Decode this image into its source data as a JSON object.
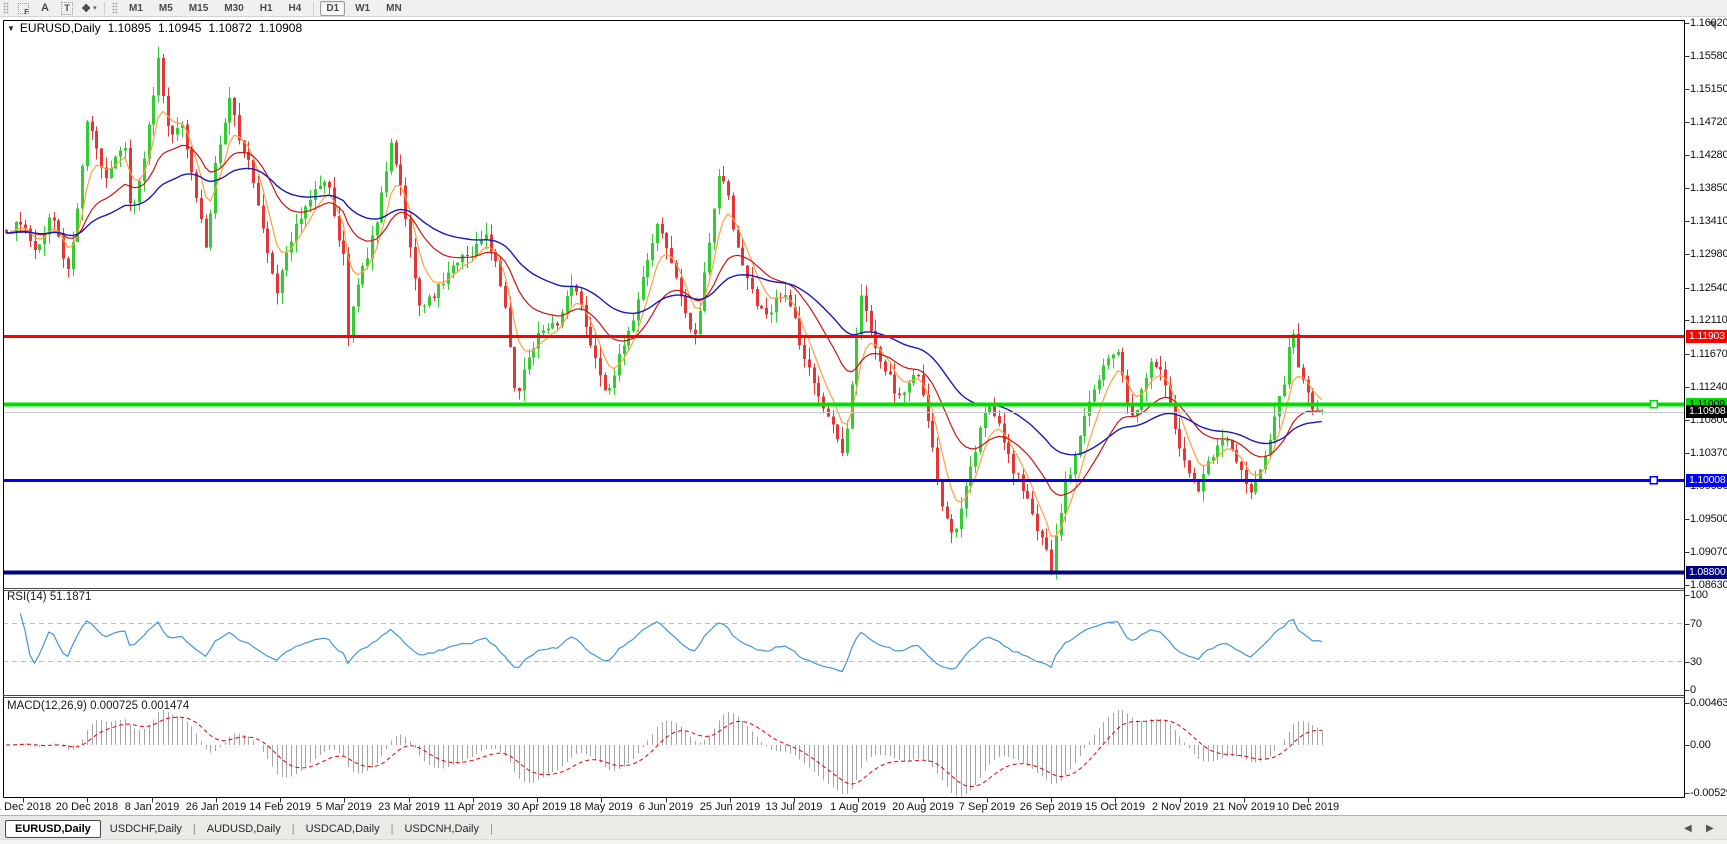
{
  "toolbar": {
    "tools": [
      {
        "name": "fractals-grid-icon",
        "label": "F"
      },
      {
        "name": "text-annotation-icon",
        "label": "A"
      },
      {
        "name": "text-label-icon",
        "label": "T"
      },
      {
        "name": "line-style-icon",
        "label": "❖",
        "caret": "▾"
      }
    ],
    "timeframes": [
      "M1",
      "M5",
      "M15",
      "M30",
      "H1",
      "H4",
      "D1",
      "W1",
      "MN"
    ],
    "active_timeframe": "D1"
  },
  "chart": {
    "title": {
      "dropdown": "▼",
      "symbol": "EURUSD,Daily",
      "open": "1.10895",
      "high": "1.10945",
      "low": "1.10872",
      "close": "1.10908"
    },
    "price_ticks": [
      "1.16020",
      "1.15580",
      "1.15150",
      "1.14720",
      "1.14280",
      "1.13850",
      "1.13410",
      "1.12980",
      "1.12540",
      "1.12110",
      "1.11670",
      "1.11240",
      "1.10800",
      "1.10370",
      "1.09930",
      "1.09500",
      "1.09070",
      "1.08630"
    ],
    "rsi_label": "RSI(14) 51.1871",
    "rsi_ticks": [
      "100",
      "70",
      "30",
      "0"
    ],
    "macd_label": "MACD(12,26,9) 0.000725 0.001474",
    "macd_ticks": [
      "0.00463",
      "0.00",
      "-0.005299"
    ],
    "dates": [
      "1 Dec 2018",
      "20 Dec 2018",
      "8 Jan 2019",
      "26 Jan 2019",
      "14 Feb 2019",
      "5 Mar 2019",
      "23 Mar 2019",
      "11 Apr 2019",
      "30 Apr 2019",
      "18 May 2019",
      "6 Jun 2019",
      "25 Jun 2019",
      "13 Jul 2019",
      "1 Aug 2019",
      "20 Aug 2019",
      "7 Sep 2019",
      "26 Sep 2019",
      "15 Oct 2019",
      "2 Nov 2019",
      "21 Nov 2019",
      "10 Dec 2019"
    ]
  },
  "tabs": [
    {
      "label": "EURUSD,Daily",
      "active": true
    },
    {
      "label": "USDCHF,Daily",
      "active": false
    },
    {
      "label": "AUDUSD,Daily",
      "active": false
    },
    {
      "label": "USDCAD,Daily",
      "active": false
    },
    {
      "label": "USDCNH,Daily",
      "active": false
    }
  ],
  "chart_data": {
    "type": "candlestick",
    "symbol": "EURUSD",
    "period": "Daily",
    "current_bar": {
      "open": 1.10895,
      "high": 1.10945,
      "low": 1.10872,
      "close": 1.10908
    },
    "price_axis_range": [
      1.0863,
      1.1602
    ],
    "horizontal_lines": [
      {
        "name": "resistance-line-red",
        "value": 1.11903,
        "label": "1.11903",
        "color": "#ff0000",
        "width": 3,
        "label_text": "#ffffff"
      },
      {
        "name": "support-line-green",
        "value": 1.11009,
        "label": "1.11009",
        "color": "#00dd00",
        "width": 4,
        "label_text": "#000000",
        "marker": true
      },
      {
        "name": "current-price-line",
        "value": 1.10908,
        "label": "1.10908",
        "color": "#c8c8c8",
        "width": 1,
        "label_bg": "#000000",
        "label_text": "#ffffff"
      },
      {
        "name": "support-line-blue",
        "value": 1.10008,
        "label": "1.10008",
        "color": "#0000ff",
        "width": 3,
        "label_text": "#ffffff",
        "marker": true
      },
      {
        "name": "support-line-navy",
        "value": 1.088,
        "label": "1.08800",
        "color": "#000080",
        "width": 4,
        "label_text": "#ffffff"
      }
    ],
    "indicators": [
      {
        "name": "RSI",
        "period": 14,
        "value": 51.1871,
        "levels": [
          70,
          30
        ],
        "range": [
          0,
          100
        ],
        "color": "#3f96e0"
      },
      {
        "name": "MACD",
        "fast": 12,
        "slow": 26,
        "signal": 9,
        "value": 0.000725,
        "signal_value": 0.001474,
        "axis_values": [
          0.00463,
          0,
          -0.005299
        ],
        "hist_color": "#a6a6a6",
        "signal_color": "#e00000"
      }
    ],
    "moving_averages": [
      {
        "period": 6,
        "color": "#ff9f40"
      },
      {
        "period": 20,
        "color": "#cc1414"
      },
      {
        "period": 45,
        "color": "#1a1ab8"
      }
    ],
    "colors": {
      "bull": "#33cc33",
      "bear": "#e63535",
      "background": "#ffffff",
      "foreground": "#000000"
    },
    "price_path": [
      [
        5,
        1.133
      ],
      [
        20,
        1.134
      ],
      [
        35,
        1.1305
      ],
      [
        53,
        1.135
      ],
      [
        67,
        1.127
      ],
      [
        80,
        1.139
      ],
      [
        87,
        1.147
      ],
      [
        95,
        1.144
      ],
      [
        105,
        1.139
      ],
      [
        118,
        1.143
      ],
      [
        124,
        1.145
      ],
      [
        131,
        1.134
      ],
      [
        140,
        1.14
      ],
      [
        150,
        1.148
      ],
      [
        158,
        1.156
      ],
      [
        165,
        1.148
      ],
      [
        172,
        1.145
      ],
      [
        180,
        1.148
      ],
      [
        190,
        1.142
      ],
      [
        199,
        1.135
      ],
      [
        206,
        1.13
      ],
      [
        215,
        1.142
      ],
      [
        229,
        1.1505
      ],
      [
        237,
        1.146
      ],
      [
        248,
        1.142
      ],
      [
        258,
        1.136
      ],
      [
        268,
        1.13
      ],
      [
        277,
        1.1248
      ],
      [
        285,
        1.129
      ],
      [
        295,
        1.133
      ],
      [
        305,
        1.136
      ],
      [
        315,
        1.139
      ],
      [
        327,
        1.14
      ],
      [
        337,
        1.133
      ],
      [
        345,
        1.129
      ],
      [
        348,
        1.1185
      ],
      [
        355,
        1.124
      ],
      [
        365,
        1.129
      ],
      [
        375,
        1.133
      ],
      [
        383,
        1.139
      ],
      [
        391,
        1.1442
      ],
      [
        400,
        1.139
      ],
      [
        410,
        1.131
      ],
      [
        419,
        1.1225
      ],
      [
        430,
        1.124
      ],
      [
        442,
        1.126
      ],
      [
        455,
        1.1285
      ],
      [
        468,
        1.13
      ],
      [
        480,
        1.131
      ],
      [
        486,
        1.1318
      ],
      [
        495,
        1.129
      ],
      [
        505,
        1.122
      ],
      [
        516,
        1.1112
      ],
      [
        525,
        1.115
      ],
      [
        535,
        1.118
      ],
      [
        545,
        1.121
      ],
      [
        555,
        1.12
      ],
      [
        565,
        1.124
      ],
      [
        574,
        1.1255
      ],
      [
        585,
        1.121
      ],
      [
        595,
        1.116
      ],
      [
        608,
        1.111
      ],
      [
        620,
        1.117
      ],
      [
        632,
        1.121
      ],
      [
        645,
        1.128
      ],
      [
        658,
        1.134
      ],
      [
        668,
        1.13
      ],
      [
        680,
        1.124
      ],
      [
        690,
        1.12
      ],
      [
        696,
        1.1185
      ],
      [
        705,
        1.128
      ],
      [
        712,
        1.135
      ],
      [
        719,
        1.1405
      ],
      [
        728,
        1.137
      ],
      [
        738,
        1.13
      ],
      [
        748,
        1.126
      ],
      [
        758,
        1.123
      ],
      [
        767,
        1.121
      ],
      [
        778,
        1.125
      ],
      [
        790,
        1.123
      ],
      [
        800,
        1.118
      ],
      [
        810,
        1.114
      ],
      [
        821,
        1.1105
      ],
      [
        832,
        1.108
      ],
      [
        840,
        1.104
      ],
      [
        844,
        1.103
      ],
      [
        852,
        1.114
      ],
      [
        861,
        1.124
      ],
      [
        870,
        1.12
      ],
      [
        880,
        1.116
      ],
      [
        888,
        1.114
      ],
      [
        898,
        1.111
      ],
      [
        908,
        1.113
      ],
      [
        919,
        1.114
      ],
      [
        928,
        1.108
      ],
      [
        935,
        1.102
      ],
      [
        942,
        1.0965
      ],
      [
        950,
        1.094
      ],
      [
        956,
        1.093
      ],
      [
        964,
        1.099
      ],
      [
        972,
        1.103
      ],
      [
        982,
        1.108
      ],
      [
        990,
        1.1105
      ],
      [
        1000,
        1.107
      ],
      [
        1013,
        1.1015
      ],
      [
        1022,
        1.099
      ],
      [
        1032,
        1.096
      ],
      [
        1042,
        1.092
      ],
      [
        1051,
        1.0885
      ],
      [
        1058,
        1.094
      ],
      [
        1065,
        1.099
      ],
      [
        1075,
        1.104
      ],
      [
        1085,
        1.109
      ],
      [
        1095,
        1.113
      ],
      [
        1105,
        1.1155
      ],
      [
        1118,
        1.1165
      ],
      [
        1128,
        1.109
      ],
      [
        1135,
        1.1078
      ],
      [
        1142,
        1.112
      ],
      [
        1152,
        1.116
      ],
      [
        1160,
        1.115
      ],
      [
        1168,
        1.111
      ],
      [
        1176,
        1.106
      ],
      [
        1185,
        1.102
      ],
      [
        1192,
        1.1
      ],
      [
        1199,
        1.0992
      ],
      [
        1208,
        1.102
      ],
      [
        1216,
        1.105
      ],
      [
        1223,
        1.106
      ],
      [
        1232,
        1.104
      ],
      [
        1240,
        1.101
      ],
      [
        1250,
        1.0985
      ],
      [
        1258,
        1.101
      ],
      [
        1266,
        1.104
      ],
      [
        1274,
        1.108
      ],
      [
        1282,
        1.112
      ],
      [
        1290,
        1.118
      ],
      [
        1294,
        1.1195
      ],
      [
        1299,
        1.114
      ],
      [
        1305,
        1.112
      ],
      [
        1312,
        1.11
      ],
      [
        1321,
        1.10908
      ]
    ]
  }
}
